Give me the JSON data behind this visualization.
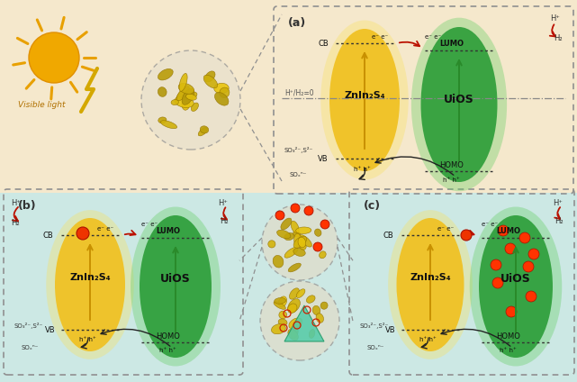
{
  "bg_color_top": "#f5e8cc",
  "bg_color_bottom": "#cce8e4",
  "yellow_color": "#f0c020",
  "yellow_glow": "#f8e060",
  "green_color": "#2e9e3a",
  "green_glow": "#60cc60",
  "red_dot_color": "#dd3300",
  "arrow_red": "#bb1100",
  "arrow_black": "#222222",
  "sun_color": "#f0a800",
  "sun_ray_color": "#e8a000",
  "title_a": "(a)",
  "title_b": "(b)",
  "title_c": "(c)",
  "label_znin2s4": "ZnIn₂S₄",
  "label_uios": "UiOS",
  "label_cb": "CB",
  "label_vb": "VB",
  "label_lumo": "LUMO",
  "label_homo": "HOMO",
  "label_h2": "H₂",
  "label_hplus": "H⁺",
  "label_so3": "SO₃²⁻,S²⁻",
  "label_sox": "SOₓⁿ⁻",
  "label_ee": "e⁻ e⁻",
  "label_hh": "h⁺ h⁺",
  "label_h2zero": "H⁺/H₂=0",
  "label_visible": "Visible light"
}
